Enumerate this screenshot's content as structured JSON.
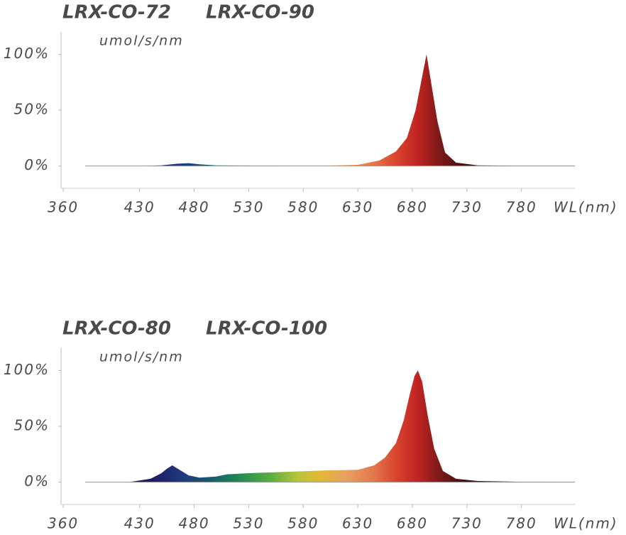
{
  "chart_data": [
    {
      "type": "area",
      "titles": [
        "LRX-CO-72",
        "LRX-CO-90"
      ],
      "y_label": "umol/s/nm",
      "x_label": "WL(nm)",
      "xlim": [
        358,
        829
      ],
      "ylim": [
        -20,
        120
      ],
      "xticks": [
        360,
        430,
        480,
        530,
        580,
        630,
        680,
        730,
        780
      ],
      "yticks": [
        {
          "value": 0,
          "label": "0%"
        },
        {
          "value": 50,
          "label": "50%"
        },
        {
          "value": 100,
          "label": "100%"
        }
      ],
      "x": [
        380,
        430,
        450,
        465,
        475,
        485,
        500,
        550,
        600,
        630,
        650,
        665,
        675,
        683,
        688,
        693,
        698,
        703,
        710,
        720,
        740,
        780,
        829
      ],
      "values": [
        0,
        0,
        0.5,
        2,
        2.5,
        1.5,
        0.5,
        0.3,
        0.3,
        1,
        5,
        13,
        25,
        50,
        75,
        100,
        70,
        40,
        12,
        3,
        0.5,
        0.2,
        0.2
      ]
    },
    {
      "type": "area",
      "titles": [
        "LRX-CO-80",
        "LRX-CO-100"
      ],
      "y_label": "umol/s/nm",
      "x_label": "WL(nm)",
      "xlim": [
        358,
        829
      ],
      "ylim": [
        -20,
        120
      ],
      "xticks": [
        360,
        430,
        480,
        530,
        580,
        630,
        680,
        730,
        780
      ],
      "yticks": [
        {
          "value": 0,
          "label": "0%"
        },
        {
          "value": 50,
          "label": "50%"
        },
        {
          "value": 100,
          "label": "100%"
        }
      ],
      "x": [
        380,
        420,
        440,
        450,
        455,
        460,
        465,
        475,
        485,
        500,
        510,
        530,
        560,
        600,
        630,
        645,
        655,
        665,
        672,
        678,
        682,
        685,
        689,
        694,
        700,
        708,
        720,
        740,
        780,
        829
      ],
      "values": [
        0,
        0,
        3,
        8,
        12,
        15,
        12,
        6,
        4,
        5,
        7,
        8,
        9,
        10.5,
        11,
        15,
        22,
        35,
        55,
        80,
        95,
        100,
        90,
        60,
        30,
        10,
        3,
        1,
        0.3,
        0.2
      ]
    }
  ]
}
